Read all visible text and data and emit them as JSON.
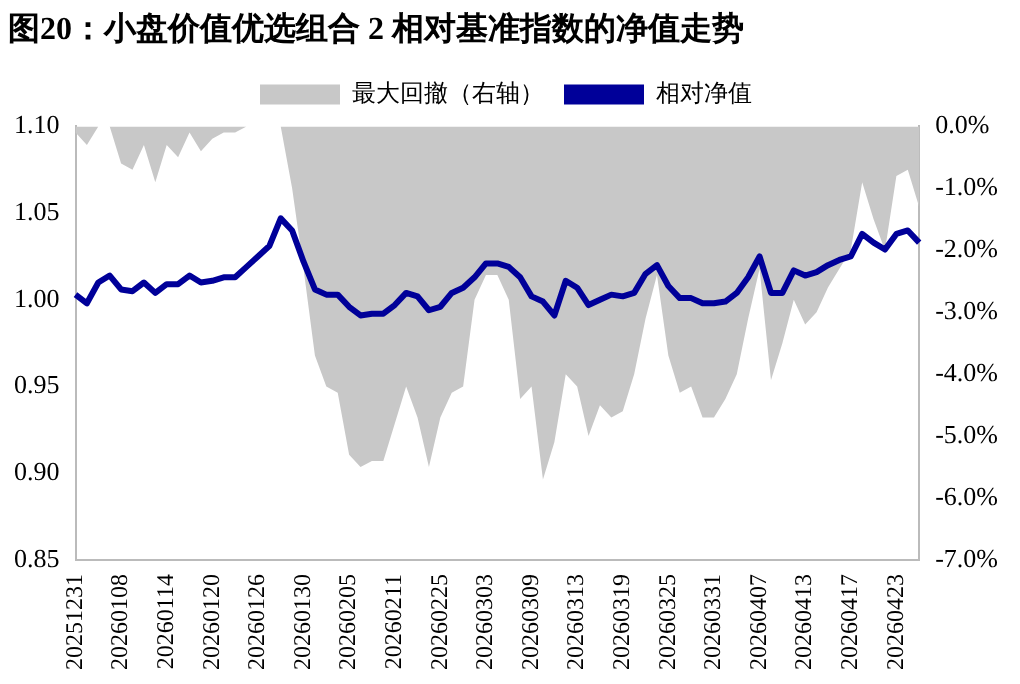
{
  "chart_data": {
    "type": "line",
    "title": "图20：小盘价值优选组合 2 相对基准指数的净值走势",
    "categories": [
      "20251231",
      null,
      null,
      null,
      "20260108",
      null,
      null,
      null,
      "20260114",
      null,
      null,
      null,
      "20260120",
      null,
      null,
      null,
      "20260126",
      null,
      null,
      null,
      "20260130",
      null,
      null,
      null,
      "20260205",
      null,
      null,
      null,
      "20260211",
      null,
      null,
      null,
      "20260225",
      null,
      null,
      null,
      "20260303",
      null,
      null,
      null,
      "20260309",
      null,
      null,
      null,
      "20260313",
      null,
      null,
      null,
      "20260319",
      null,
      null,
      null,
      "20260325",
      null,
      null,
      null,
      "20260331",
      null,
      null,
      null,
      "20260407",
      null,
      null,
      null,
      "20260413",
      null,
      null,
      null,
      "20260417",
      null,
      null,
      null,
      "20260423",
      null,
      null
    ],
    "series": [
      {
        "type": "area",
        "name": "最大回撤（右轴）",
        "color": "#c8c8c8",
        "axis": "y2",
        "values": [
          -0.1,
          -0.3,
          0.0,
          0.0,
          -0.6,
          -0.7,
          -0.3,
          -0.9,
          -0.3,
          -0.5,
          -0.1,
          -0.4,
          -0.2,
          -0.1,
          -0.1,
          0.0,
          0.0,
          0.0,
          0.0,
          -1.0,
          -2.3,
          -3.7,
          -4.2,
          -4.3,
          -5.3,
          -5.5,
          -5.4,
          -5.4,
          -4.8,
          -4.2,
          -4.7,
          -5.5,
          -4.7,
          -4.3,
          -4.2,
          -2.8,
          -2.4,
          -2.4,
          -2.8,
          -4.4,
          -4.2,
          -5.7,
          -5.1,
          -4.0,
          -4.2,
          -5.0,
          -4.5,
          -4.7,
          -4.6,
          -4.0,
          -3.1,
          -2.4,
          -3.7,
          -4.3,
          -4.2,
          -4.7,
          -4.7,
          -4.4,
          -4.0,
          -3.1,
          -2.3,
          -4.1,
          -3.5,
          -2.8,
          -3.2,
          -3.0,
          -2.6,
          -2.3,
          -2.0,
          -0.9,
          -1.5,
          -2.0,
          -0.8,
          -0.7,
          -1.3
        ]
      },
      {
        "type": "line",
        "name": "相对净值",
        "color": "#000099",
        "values": [
          1.003,
          0.998,
          1.01,
          1.014,
          1.006,
          1.005,
          1.01,
          1.004,
          1.009,
          1.009,
          1.014,
          1.01,
          1.011,
          1.013,
          1.013,
          1.019,
          1.025,
          1.031,
          1.047,
          1.04,
          1.022,
          1.006,
          1.003,
          1.003,
          0.996,
          0.991,
          0.992,
          0.992,
          0.997,
          1.004,
          1.002,
          0.994,
          0.996,
          1.004,
          1.007,
          1.013,
          1.021,
          1.021,
          1.019,
          1.013,
          1.002,
          0.999,
          0.991,
          1.011,
          1.007,
          0.997,
          1.0,
          1.003,
          1.002,
          1.004,
          1.015,
          1.02,
          1.008,
          1.001,
          1.001,
          0.998,
          0.998,
          0.999,
          1.004,
          1.013,
          1.025,
          1.004,
          1.004,
          1.017,
          1.014,
          1.016,
          1.02,
          1.023,
          1.025,
          1.038,
          1.033,
          1.029,
          1.038,
          1.04,
          1.033
        ]
      }
    ],
    "ylim": [
      0.85,
      1.1
    ],
    "yticks": [
      {
        "value": 0.85,
        "label": "0.85"
      },
      {
        "value": 0.9,
        "label": "0.90"
      },
      {
        "value": 0.95,
        "label": "0.95"
      },
      {
        "value": 1.0,
        "label": "1.00"
      },
      {
        "value": 1.05,
        "label": "1.05"
      },
      {
        "value": 1.1,
        "label": "1.10"
      }
    ],
    "y2lim": [
      -7,
      0
    ],
    "y2ticks": [
      {
        "value": -7,
        "label": "-7.0%"
      },
      {
        "value": -6,
        "label": "-6.0%"
      },
      {
        "value": -5,
        "label": "-5.0%"
      },
      {
        "value": -4,
        "label": "-4.0%"
      },
      {
        "value": -3,
        "label": "-3.0%"
      },
      {
        "value": -2,
        "label": "-2.0%"
      },
      {
        "value": -1,
        "label": "-1.0%"
      },
      {
        "value": 0,
        "label": "0.0%"
      }
    ],
    "legend": "top",
    "grid": false
  }
}
